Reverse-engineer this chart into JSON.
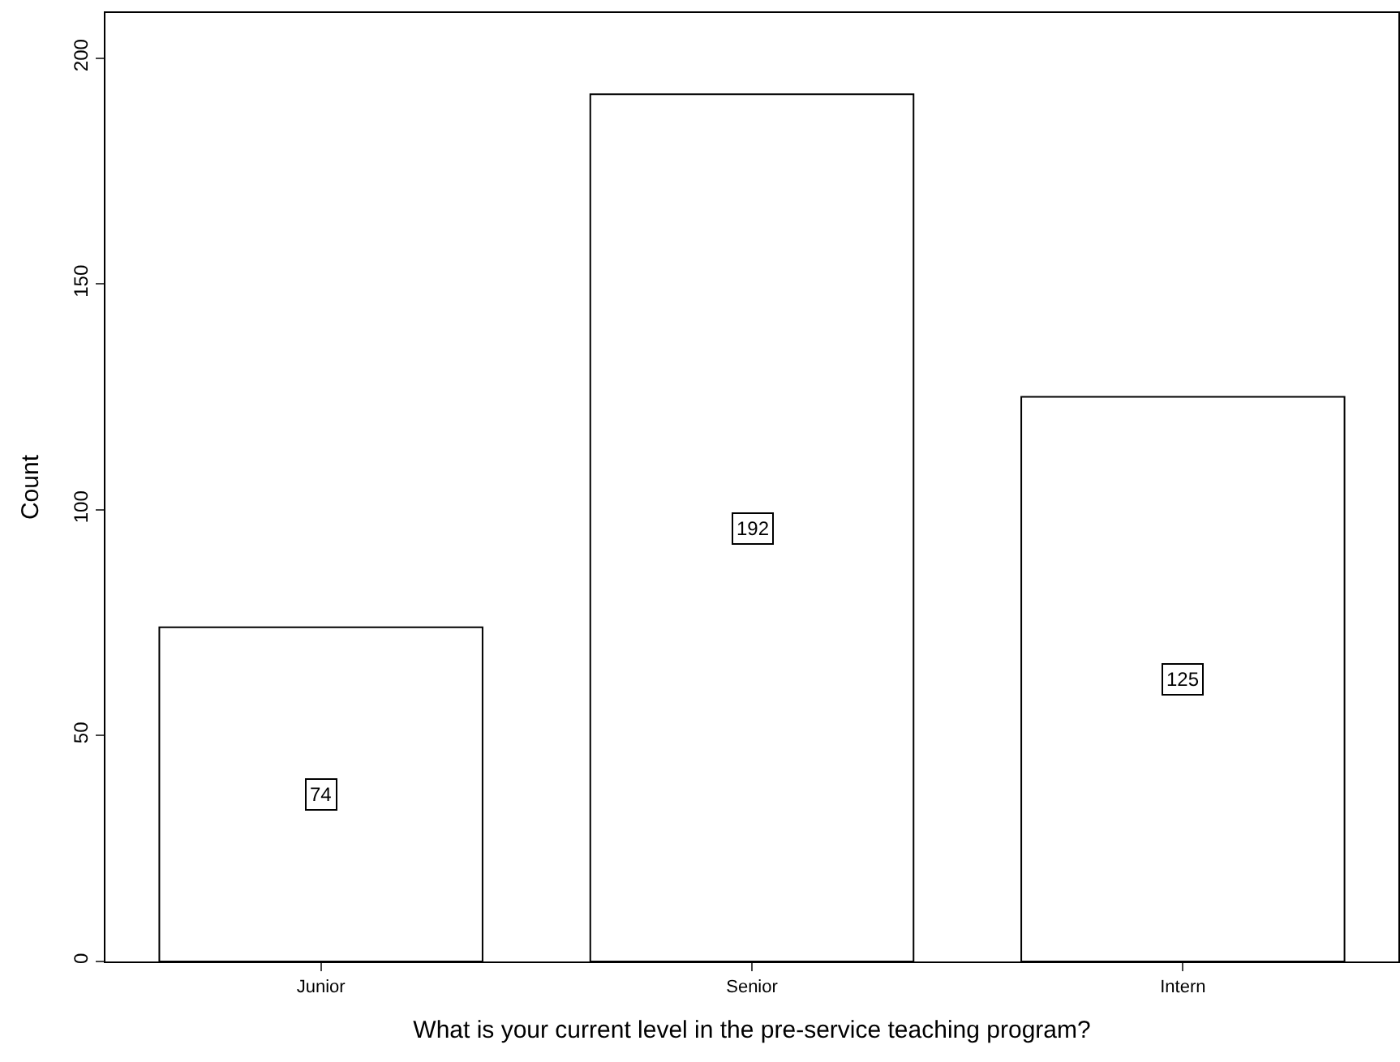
{
  "chart_data": {
    "type": "bar",
    "xlabel": "What is your current level in the pre-service teaching program?",
    "ylabel": "Count",
    "categories": [
      "Junior",
      "Senior",
      "Intern"
    ],
    "values": [
      74,
      192,
      125
    ],
    "color": "#ffffff",
    "ylim": [
      0,
      210
    ],
    "yticks": [
      0,
      50,
      100,
      150,
      200
    ],
    "data_labels": true
  }
}
